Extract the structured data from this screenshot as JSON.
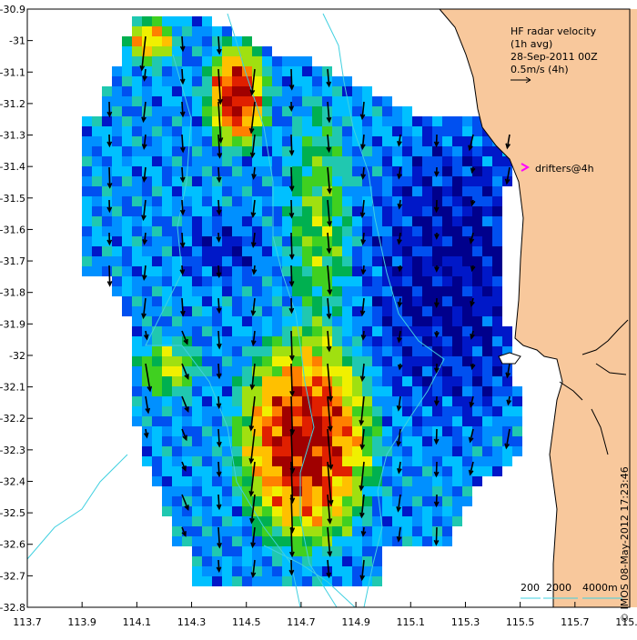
{
  "legend": {
    "line1": "HF radar velocity",
    "line2": "(1h avg)",
    "line3": "28-Sep-2011 00Z",
    "line4": "0.5m/s (4h)",
    "drifters_label": "drifters@4h"
  },
  "scale_bar": {
    "isobath1": "200",
    "isobath2": "2000",
    "isobath3": "4000m"
  },
  "credit": "© IMOS 08-May-2012 17:23:46",
  "axes": {
    "x_ticks": [
      "113.7",
      "113.9",
      "114.1",
      "114.3",
      "114.5",
      "114.7",
      "114.9",
      "115.1",
      "115.3",
      "115.5",
      "115.7",
      "115.9"
    ],
    "y_ticks": [
      "-30.9",
      "-31",
      "-31.1",
      "-31.2",
      "-31.3",
      "-31.4",
      "-31.5",
      "-31.6",
      "-31.7",
      "-31.8",
      "-31.9",
      "-32",
      "-32.1",
      "-32.2",
      "-32.3",
      "-32.4",
      "-32.5",
      "-32.6",
      "-32.7",
      "-32.8"
    ]
  },
  "colors": {
    "land": "#f8c89c",
    "isobath": "#40d0e0",
    "arrow": "#000000",
    "drifter": "#ff00ff"
  }
}
